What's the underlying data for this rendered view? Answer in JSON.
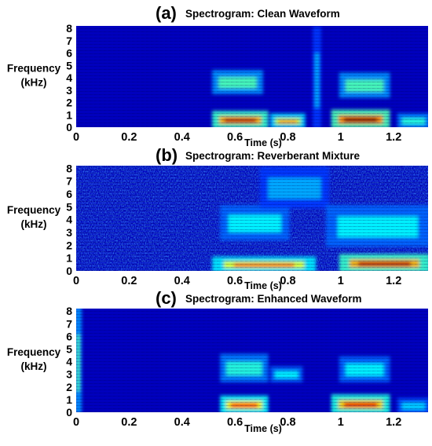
{
  "chart_data": [
    {
      "type": "heatmap",
      "panel_label": "(a)",
      "title": "Spectrogram: Clean Waveform",
      "xlabel": "Time (s)",
      "ylabel": "Frequency\n(kHz)",
      "x_ticks": [
        "0",
        "0.2",
        "0.4",
        "0.6",
        "0.8",
        "1",
        "1.2"
      ],
      "y_ticks": [
        "0",
        "1",
        "2",
        "3",
        "4",
        "5",
        "6",
        "7",
        "8"
      ],
      "xlim": [
        0,
        1.33
      ],
      "ylim": [
        0,
        8.2
      ],
      "colormap": "jet",
      "energy_regions": [
        {
          "t0": 0.52,
          "t1": 0.72,
          "f0": 0.0,
          "f1": 1.2,
          "level": 0.95
        },
        {
          "t0": 0.52,
          "t1": 0.7,
          "f0": 2.8,
          "f1": 4.5,
          "level": 0.6
        },
        {
          "t0": 0.74,
          "t1": 0.86,
          "f0": 0.0,
          "f1": 1.0,
          "level": 0.75
        },
        {
          "t0": 0.9,
          "t1": 0.92,
          "f0": 0.0,
          "f1": 8.0,
          "level": 0.4
        },
        {
          "t0": 0.97,
          "t1": 1.18,
          "f0": 0.0,
          "f1": 1.3,
          "level": 1.0
        },
        {
          "t0": 1.0,
          "t1": 1.18,
          "f0": 2.5,
          "f1": 4.3,
          "level": 0.6
        },
        {
          "t0": 1.22,
          "t1": 1.33,
          "f0": 0.0,
          "f1": 1.0,
          "level": 0.55
        }
      ],
      "background_level": 0.0
    },
    {
      "type": "heatmap",
      "panel_label": "(b)",
      "title": "Spectrogram: Reverberant Mixture",
      "xlabel": "Time (s)",
      "ylabel": "Frequency\n(kHz)",
      "x_ticks": [
        "0",
        "0.2",
        "0.4",
        "0.6",
        "0.8",
        "1",
        "1.2"
      ],
      "y_ticks": [
        "0",
        "1",
        "2",
        "3",
        "4",
        "5",
        "6",
        "7",
        "8"
      ],
      "xlim": [
        0,
        1.33
      ],
      "ylim": [
        0,
        8.2
      ],
      "colormap": "jet",
      "energy_regions": [
        {
          "t0": 0.52,
          "t1": 0.9,
          "f0": 0.0,
          "f1": 1.0,
          "level": 0.8
        },
        {
          "t0": 0.55,
          "t1": 0.8,
          "f0": 2.5,
          "f1": 5.0,
          "level": 0.5
        },
        {
          "t0": 0.7,
          "t1": 0.95,
          "f0": 5.0,
          "f1": 8.0,
          "level": 0.4
        },
        {
          "t0": 1.0,
          "t1": 1.33,
          "f0": 0.0,
          "f1": 1.2,
          "level": 0.95
        },
        {
          "t0": 0.95,
          "t1": 1.33,
          "f0": 2.0,
          "f1": 5.0,
          "level": 0.5
        }
      ],
      "background_level": 0.22
    },
    {
      "type": "heatmap",
      "panel_label": "(c)",
      "title": "Spectrogram: Enhanced Waveform",
      "xlabel": "Time (s)",
      "ylabel": "Frequency\n(kHz)",
      "x_ticks": [
        "0",
        "0.2",
        "0.4",
        "0.6",
        "0.8",
        "1",
        "1.2"
      ],
      "y_ticks": [
        "0",
        "1",
        "2",
        "3",
        "4",
        "5",
        "6",
        "7",
        "8"
      ],
      "xlim": [
        0,
        1.33
      ],
      "ylim": [
        0,
        8.2
      ],
      "colormap": "jet",
      "energy_regions": [
        {
          "t0": 0.0,
          "t1": 0.015,
          "f0": 0.0,
          "f1": 8.2,
          "level": 0.6
        },
        {
          "t0": 0.55,
          "t1": 0.72,
          "f0": 0.0,
          "f1": 1.2,
          "level": 0.85
        },
        {
          "t0": 0.55,
          "t1": 0.72,
          "f0": 2.5,
          "f1": 4.5,
          "level": 0.55
        },
        {
          "t0": 0.74,
          "t1": 0.85,
          "f0": 2.5,
          "f1": 3.5,
          "level": 0.5
        },
        {
          "t0": 0.97,
          "t1": 1.18,
          "f0": 0.0,
          "f1": 1.3,
          "level": 0.9
        },
        {
          "t0": 1.0,
          "t1": 1.18,
          "f0": 2.5,
          "f1": 4.3,
          "level": 0.5
        },
        {
          "t0": 1.22,
          "t1": 1.33,
          "f0": 0.0,
          "f1": 1.0,
          "level": 0.45
        }
      ],
      "background_level": 0.02
    }
  ]
}
